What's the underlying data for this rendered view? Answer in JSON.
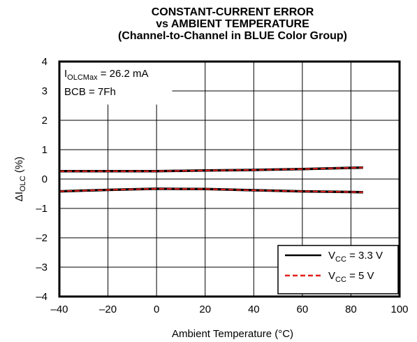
{
  "chart_data": {
    "type": "line",
    "title": [
      "CONSTANT-CURRENT ERROR",
      "vs AMBIENT TEMPERATURE",
      "(Channel-to-Channel in BLUE Color Group)"
    ],
    "xlabel": "Ambient Temperature (°C)",
    "ylabel": {
      "main": "ΔI",
      "sub": "OLC",
      "tail": " (%)"
    },
    "xlim": [
      -40,
      100
    ],
    "ylim": [
      -4,
      4
    ],
    "xticks": [
      -40,
      -20,
      0,
      20,
      40,
      60,
      80,
      100
    ],
    "xtick_labels": [
      "–40",
      "–20",
      "0",
      "20",
      "40",
      "60",
      "80",
      "100"
    ],
    "yticks": [
      -4,
      -3,
      -2,
      -1,
      0,
      1,
      2,
      3,
      4
    ],
    "ytick_labels": [
      "–4",
      "–3",
      "–2",
      "–1",
      "0",
      "1",
      "2",
      "3",
      "4"
    ],
    "grid": true,
    "legend_position": "bottom-right",
    "annotations": [
      {
        "main": "I",
        "sub": "OLCMax",
        "tail": " = 26.2 mA"
      },
      {
        "main": "BCB = 7Fh",
        "sub": "",
        "tail": ""
      }
    ],
    "series": [
      {
        "name": {
          "main": "V",
          "sub": "CC",
          "tail": " = 3.3 V"
        },
        "color": "#000000",
        "dash": "solid",
        "lines": [
          {
            "x": [
              -40,
              -20,
              0,
              20,
              40,
              60,
              80,
              85
            ],
            "y": [
              0.27,
              0.27,
              0.27,
              0.29,
              0.31,
              0.34,
              0.38,
              0.39
            ]
          },
          {
            "x": [
              -40,
              -20,
              0,
              20,
              40,
              60,
              80,
              85
            ],
            "y": [
              -0.42,
              -0.37,
              -0.33,
              -0.34,
              -0.38,
              -0.42,
              -0.44,
              -0.45
            ]
          }
        ]
      },
      {
        "name": {
          "main": "V",
          "sub": "CC",
          "tail": " = 5 V"
        },
        "color": "#e0201b",
        "dash": "dashed",
        "lines": [
          {
            "x": [
              -40,
              -20,
              0,
              20,
              40,
              60,
              80,
              85
            ],
            "y": [
              0.27,
              0.27,
              0.27,
              0.29,
              0.31,
              0.34,
              0.38,
              0.39
            ]
          },
          {
            "x": [
              -40,
              -20,
              0,
              20,
              40,
              60,
              80,
              85
            ],
            "y": [
              -0.42,
              -0.37,
              -0.33,
              -0.34,
              -0.38,
              -0.42,
              -0.44,
              -0.45
            ]
          }
        ]
      }
    ]
  }
}
